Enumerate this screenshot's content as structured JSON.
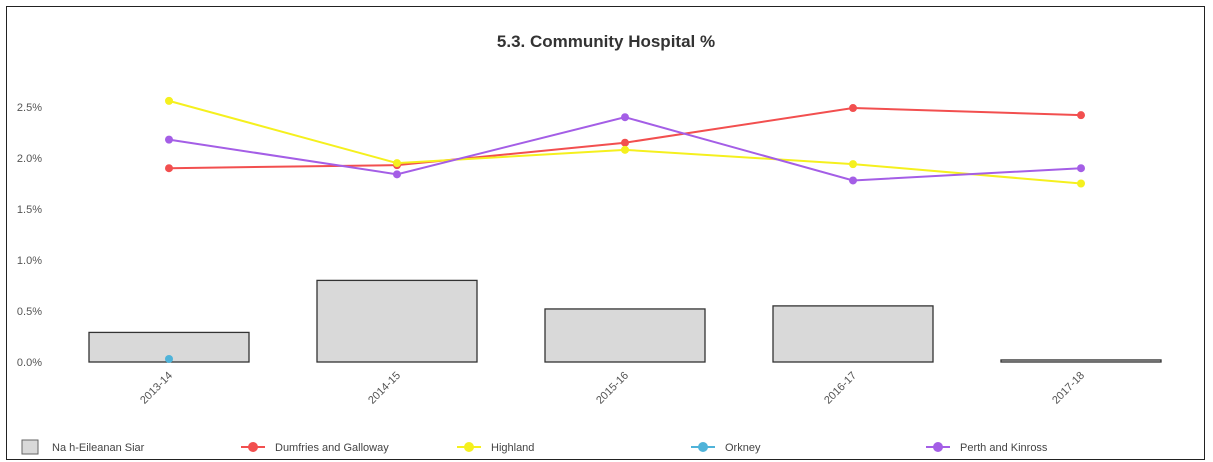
{
  "chart_data": {
    "type": "bar",
    "title": "5.3. Community Hospital %",
    "xlabel": "",
    "ylabel": "",
    "categories": [
      "2013-14",
      "2014-15",
      "2015-16",
      "2016-17",
      "2017-18"
    ],
    "y_ticks": [
      "0.0%",
      "0.5%",
      "1.0%",
      "1.5%",
      "2.0%",
      "2.5%"
    ],
    "y_tick_values": [
      0.0,
      0.5,
      1.0,
      1.5,
      2.0,
      2.5
    ],
    "ylim": [
      0,
      2.8
    ],
    "grid": false,
    "legend_position": "bottom",
    "bar_series": {
      "name": "Na h-Eileanan Siar",
      "color": "#d9d9d9",
      "values": [
        0.29,
        0.8,
        0.52,
        0.55,
        0.02
      ]
    },
    "series": [
      {
        "name": "Dumfries and Galloway",
        "color": "#f24f4f",
        "marker": "diamond",
        "values": [
          1.9,
          1.93,
          2.15,
          2.49,
          2.42
        ]
      },
      {
        "name": "Highland",
        "color": "#f5f01e",
        "marker": "diamond",
        "values": [
          2.56,
          1.95,
          2.08,
          1.94,
          1.75
        ]
      },
      {
        "name": "Orkney",
        "color": "#4fb3d9",
        "marker": "diamond",
        "values": [
          0.03,
          null,
          null,
          null,
          null
        ]
      },
      {
        "name": "Perth and Kinross",
        "color": "#a45ee6",
        "marker": "diamond",
        "values": [
          2.18,
          1.84,
          2.4,
          1.78,
          1.9
        ]
      }
    ]
  }
}
